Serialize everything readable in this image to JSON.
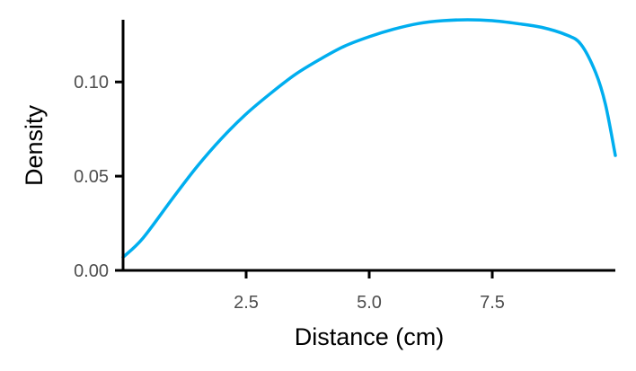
{
  "chart_data": {
    "type": "line",
    "title": "",
    "xlabel": "Distance (cm)",
    "ylabel": "Density",
    "xlim": [
      0,
      10
    ],
    "ylim": [
      0,
      0.133
    ],
    "x_ticks": [
      2.5,
      5.0,
      7.5
    ],
    "x_tick_labels": [
      "2.5",
      "5.0",
      "7.5"
    ],
    "y_ticks": [
      0.0,
      0.05,
      0.1
    ],
    "y_tick_labels": [
      "0.00",
      "0.05",
      "0.10"
    ],
    "grid": false,
    "legend": "none",
    "series": [
      {
        "name": "density",
        "color": "#00AEEF",
        "x": [
          0.0,
          0.4,
          1.0,
          1.5,
          2.0,
          2.5,
          3.0,
          3.5,
          4.0,
          4.5,
          5.0,
          5.5,
          6.0,
          6.5,
          7.0,
          7.5,
          8.0,
          8.5,
          9.0,
          9.3,
          9.6,
          9.8,
          10.0
        ],
        "y": [
          0.007,
          0.017,
          0.038,
          0.055,
          0.07,
          0.083,
          0.094,
          0.104,
          0.112,
          0.119,
          0.124,
          0.128,
          0.131,
          0.1325,
          0.133,
          0.1325,
          0.131,
          0.129,
          0.125,
          0.12,
          0.105,
          0.088,
          0.061
        ]
      }
    ]
  }
}
